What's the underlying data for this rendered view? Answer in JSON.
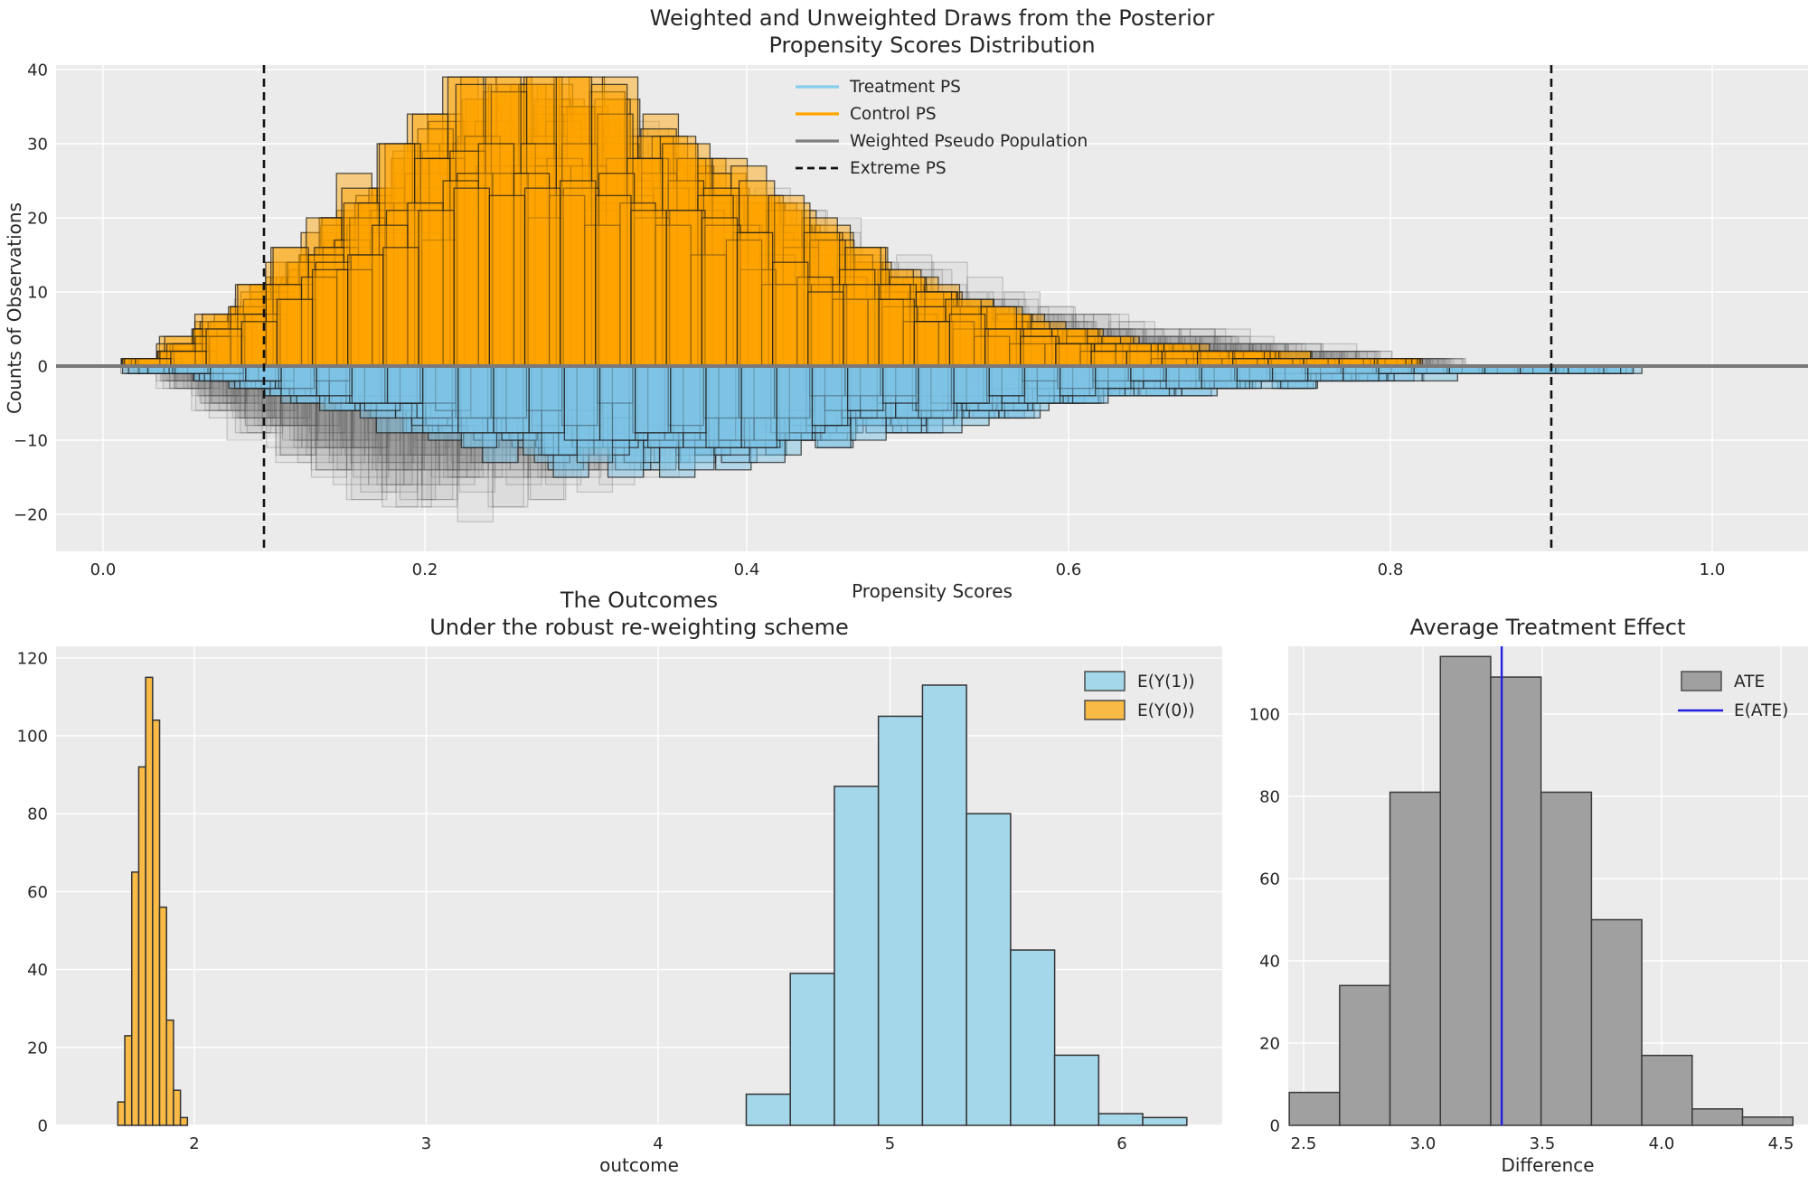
{
  "style": {
    "figure_bg": "#FFFFFF",
    "axes_bg": "#EBEBEB",
    "grid": "#FFFFFF",
    "text": "#262626"
  },
  "chart_data": [
    {
      "id": "posterior-propensity-scores",
      "type": "histogram-draws-mirrored",
      "title1": "Weighted and Unweighted Draws from the Posterior",
      "title2": "Propensity Scores Distribution",
      "xlabel": "Propensity Scores",
      "ylabel": "Counts of Observations",
      "xlim": [
        -0.029,
        1.06
      ],
      "ylim": [
        -25,
        40.6
      ],
      "xticks": {
        "values": [
          0.0,
          0.2,
          0.4,
          0.6,
          0.8,
          1.0
        ],
        "labels": [
          "0.0",
          "0.2",
          "0.4",
          "0.6",
          "0.8",
          "1.0"
        ]
      },
      "yticks": {
        "values": [
          40,
          30,
          20,
          10,
          0,
          -10,
          -20
        ],
        "labels": [
          "40",
          "30",
          "20",
          "10",
          "0",
          "−10",
          "−20"
        ]
      },
      "legend": [
        {
          "label": "Treatment PS",
          "color": "#87CEEB",
          "swatch": "line"
        },
        {
          "label": "Control PS",
          "color": "#FFA500",
          "swatch": "line"
        },
        {
          "label": "Weighted Pseudo Population",
          "color": "#808080",
          "swatch": "line"
        },
        {
          "label": "Extreme PS",
          "color": "#111111",
          "swatch": "dashed-line"
        }
      ],
      "extreme_ps": [
        0.1,
        0.9
      ],
      "zero_line": 0,
      "bins": {
        "start": 0.033,
        "step": 0.022,
        "width": 0.022,
        "count": 42
      },
      "series": {
        "control_mean": [
          1,
          2.5,
          5,
          8,
          11,
          14.5,
          18,
          21.5,
          25,
          27.5,
          29,
          29.5,
          29,
          27.5,
          25.5,
          23.5,
          21,
          18.5,
          16,
          13.5,
          11.5,
          9.5,
          8,
          6.5,
          5.5,
          4.5,
          3.5,
          3,
          2.5,
          2,
          1.7,
          1.4,
          1.1,
          0.9,
          0.7,
          0.5,
          0.3,
          0,
          0,
          0,
          0,
          0
        ],
        "treatment_mean": [
          0.4,
          0.8,
          1.4,
          2,
          2.7,
          3.4,
          4.2,
          5,
          5.8,
          6.5,
          7.2,
          7.8,
          8.2,
          8.4,
          8.4,
          8.2,
          7.9,
          7.5,
          7,
          6.5,
          6,
          5.5,
          5,
          4.5,
          4,
          3.6,
          3.2,
          2.8,
          2.5,
          2.2,
          1.9,
          1.7,
          1.5,
          1.3,
          1.1,
          1,
          0.9,
          0.8,
          0.7,
          0.6,
          0.5,
          0.4
        ],
        "weighted_above_mean": [
          1,
          2,
          4.5,
          7,
          10,
          13,
          16,
          19,
          22,
          24.5,
          26,
          26.5,
          26,
          25,
          23.5,
          22,
          20,
          18,
          16,
          14,
          12.5,
          11,
          9.5,
          8.5,
          7.5,
          6.5,
          5.5,
          5,
          4.5,
          4,
          3.5,
          3,
          2.5,
          2,
          1.5,
          1,
          0.6,
          0.3,
          0,
          0,
          0,
          0
        ],
        "weighted_below_mean": [
          1,
          2.5,
          5,
          7.5,
          9.5,
          11.5,
          13,
          14,
          14.5,
          14.5,
          14,
          13.5,
          12.5,
          11.5,
          10.5,
          9.5,
          8.5,
          7.5,
          6.5,
          5.5,
          4.5,
          3.8,
          3.2,
          2.6,
          2.2,
          1.8,
          1.5,
          1.2,
          1,
          0.8,
          0.6,
          0.5,
          0.4,
          0.3,
          0.2,
          0.1,
          0,
          0,
          0,
          0,
          0,
          0
        ]
      },
      "draws": {
        "seed": 20,
        "control": 30,
        "treatment": 30,
        "weighted": 20
      },
      "colors": {
        "control_fill": "rgba(255,165,0,0.45)",
        "control_edge": "rgba(30,30,30,0.75)",
        "treatment_fill": "rgba(125,195,230,0.5)",
        "treatment_edge": "rgba(30,30,30,0.75)",
        "weighted_fill": "rgba(130,130,130,0.07)",
        "weighted_edge": "rgba(70,70,70,0.25)",
        "zero_line": "#7a7a7a",
        "extreme_line": "#111111"
      }
    },
    {
      "id": "outcomes",
      "type": "histogram",
      "title1": "The Outcomes",
      "title2": "Under the robust re-weighting scheme",
      "xlabel": "outcome",
      "xlim": [
        1.4,
        6.43
      ],
      "ylim": [
        0,
        123
      ],
      "xticks": {
        "values": [
          2,
          3,
          4,
          5,
          6
        ],
        "labels": [
          "2",
          "3",
          "4",
          "5",
          "6"
        ]
      },
      "yticks": {
        "values": [
          0,
          20,
          40,
          60,
          80,
          100,
          120
        ],
        "labels": [
          "0",
          "20",
          "40",
          "60",
          "80",
          "100",
          "120"
        ]
      },
      "series": [
        {
          "name": "E(Y(1))",
          "color": "#A5D7EB",
          "edge": "#333333",
          "bin_start": 4.38,
          "bin_width": 0.19,
          "counts": [
            8,
            39,
            87,
            105,
            113,
            80,
            45,
            18,
            3,
            2
          ]
        },
        {
          "name": "E(Y(0))",
          "color": "#F9BA46",
          "edge": "#333333",
          "bin_start": 1.67,
          "bin_width": 0.03,
          "counts": [
            6,
            23,
            65,
            92,
            115,
            104,
            56,
            27,
            9,
            2
          ]
        }
      ]
    },
    {
      "id": "average-treatment-effect",
      "type": "histogram",
      "title1": "Average Treatment Effect",
      "xlabel": "Difference",
      "xlim": [
        2.436,
        4.613
      ],
      "ylim": [
        0,
        116.5
      ],
      "xticks": {
        "values": [
          2.5,
          3.0,
          3.5,
          4.0,
          4.5
        ],
        "labels": [
          "2.5",
          "3.0",
          "3.5",
          "4.0",
          "4.5"
        ]
      },
      "yticks": {
        "values": [
          0,
          20,
          40,
          60,
          80,
          100
        ],
        "labels": [
          "0",
          "20",
          "40",
          "60",
          "80",
          "100"
        ]
      },
      "series": [
        {
          "name": "ATE",
          "color": "#A0A0A0",
          "edge": "#3a3a3a",
          "bin_start": 2.44,
          "bin_width": 0.211,
          "counts": [
            8,
            34,
            81,
            114,
            109,
            81,
            50,
            17,
            4,
            2
          ]
        }
      ],
      "eate": {
        "label": "E(ATE)",
        "value": 3.33,
        "color": "#2020E0"
      }
    }
  ]
}
